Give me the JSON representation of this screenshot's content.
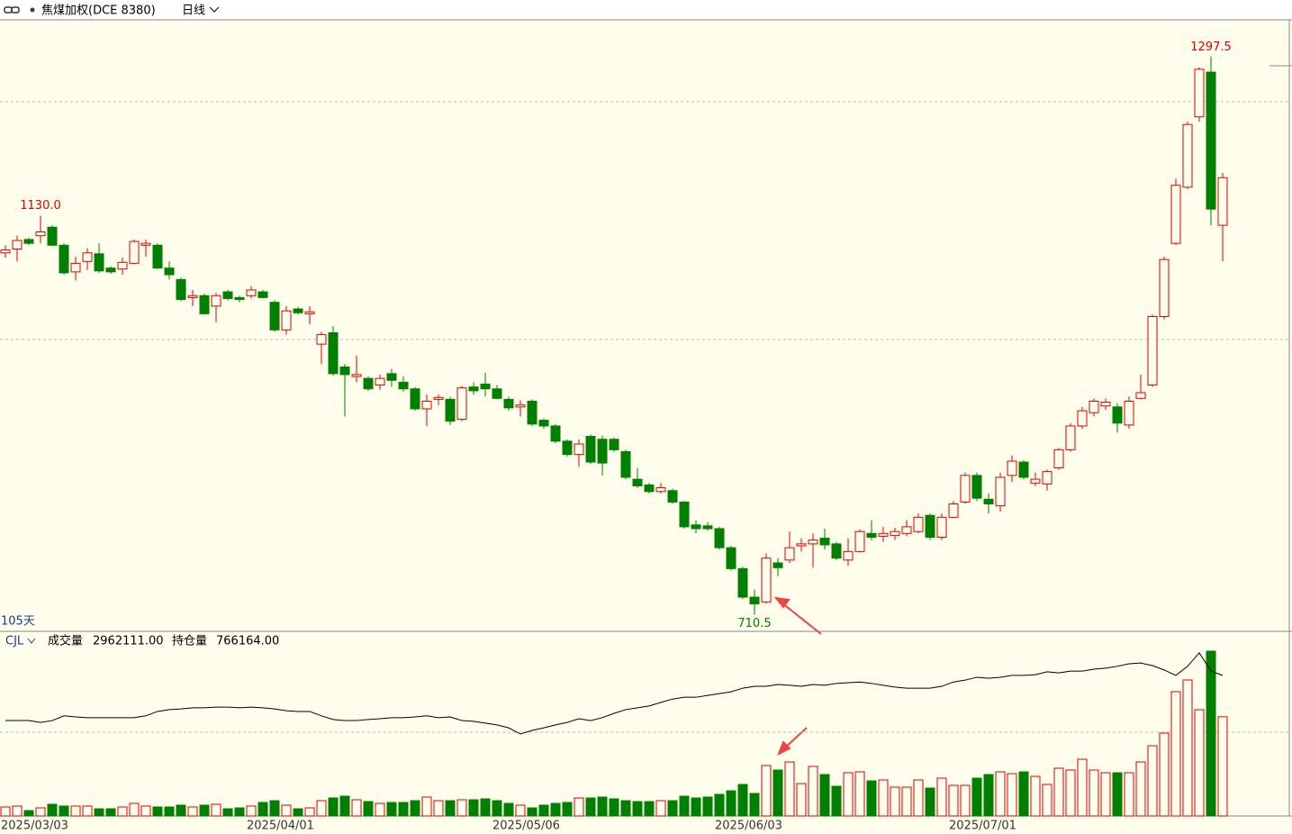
{
  "chart_data": {
    "type": "candlestick",
    "title": "焦煤加权(DCE 8380)",
    "period": "日线",
    "span_label": "105天",
    "indicator": "CJL",
    "volume_name": "成交量",
    "last_volume_label": "2962111.00",
    "oi_name": "持仓量",
    "last_oi_label": "766164.00",
    "peak_label": "1130.0",
    "high_label": "1297.5",
    "low_label": "710.5",
    "up_color": "#e00000",
    "down_color": "#008000",
    "oi_color": "#000000",
    "ylim": [
      694,
      1336
    ],
    "ygrid": [
      1000,
      1250
    ],
    "volume_ylim": [
      0,
      5000000
    ],
    "volume_grid": [
      2500000
    ],
    "y2lim": [
      380000,
      840000
    ],
    "categories": [
      "2025/03/03",
      null,
      null,
      null,
      null,
      null,
      null,
      null,
      null,
      null,
      null,
      null,
      null,
      null,
      null,
      null,
      null,
      null,
      null,
      null,
      null,
      "2025/04/01",
      null,
      null,
      null,
      null,
      null,
      null,
      null,
      null,
      null,
      null,
      null,
      null,
      null,
      null,
      null,
      null,
      null,
      null,
      null,
      null,
      "2025/05/06",
      null,
      null,
      null,
      null,
      null,
      null,
      null,
      null,
      null,
      null,
      null,
      null,
      null,
      null,
      null,
      null,
      null,
      null,
      "2025/06/03",
      null,
      null,
      null,
      null,
      null,
      null,
      null,
      null,
      null,
      null,
      null,
      null,
      null,
      null,
      null,
      null,
      null,
      null,
      null,
      "2025/07/01",
      null,
      null,
      null,
      null,
      null,
      null,
      null,
      null,
      null,
      null,
      null,
      null,
      null,
      null,
      null,
      null,
      null,
      null,
      null,
      null,
      null,
      null,
      null
    ],
    "open": [
      1091,
      1095,
      1105,
      1109,
      1118,
      1099,
      1071,
      1082,
      1090,
      1075,
      1074,
      1080,
      1099,
      1099,
      1075,
      1063,
      1044,
      1046,
      1035,
      1050,
      1044,
      1046,
      1050,
      1039,
      1010,
      1032,
      1027,
      995,
      1007,
      971,
      961,
      959,
      952,
      964,
      955,
      948,
      927,
      937,
      937,
      916,
      950,
      953,
      948,
      937,
      929,
      935,
      915,
      909,
      893,
      879,
      898,
      895,
      895,
      882,
      853,
      847,
      840,
      841,
      829,
      805,
      804,
      801,
      781,
      759,
      729,
      724,
      765,
      768,
      783,
      785,
      791,
      785,
      768,
      777,
      796,
      793,
      794,
      796,
      798,
      815,
      792,
      813,
      829,
      857,
      832,
      825,
      857,
      871,
      849,
      848,
      865,
      884,
      909,
      923,
      930,
      929,
      910,
      938,
      952,
      1024,
      1101,
      1160,
      1234,
      1281,
      1120
    ],
    "high": [
      1099,
      1109,
      1107,
      1130,
      1120,
      1101,
      1087,
      1096,
      1101,
      1077,
      1086,
      1105,
      1105,
      1101,
      1082,
      1065,
      1052,
      1048,
      1049,
      1052,
      1046,
      1056,
      1052,
      1041,
      1035,
      1034,
      1035,
      1008,
      1014,
      974,
      983,
      961,
      963,
      969,
      961,
      950,
      942,
      942,
      940,
      951,
      955,
      965,
      952,
      940,
      936,
      937,
      917,
      911,
      895,
      895,
      900,
      899,
      897,
      884,
      865,
      849,
      849,
      843,
      830,
      810,
      808,
      803,
      783,
      761,
      737,
      775,
      770,
      798,
      791,
      796,
      801,
      787,
      791,
      800,
      810,
      803,
      802,
      810,
      817,
      817,
      817,
      830,
      860,
      860,
      838,
      860,
      878,
      873,
      860,
      863,
      886,
      912,
      929,
      938,
      938,
      933,
      940,
      963,
      1026,
      1087,
      1169,
      1229,
      1286,
      1297.5,
      1175
    ],
    "low": [
      1086,
      1082,
      1099,
      1101,
      1098,
      1068,
      1062,
      1073,
      1070,
      1069,
      1068,
      1079,
      1087,
      1074,
      1063,
      1040,
      1035,
      1026,
      1018,
      1041,
      1039,
      1043,
      1043,
      1008,
      1005,
      1026,
      1016,
      974,
      962,
      919,
      955,
      946,
      947,
      950,
      945,
      925,
      909,
      931,
      910,
      914,
      942,
      940,
      937,
      925,
      919,
      909,
      906,
      891,
      877,
      866,
      869,
      857,
      882,
      853,
      844,
      838,
      838,
      827,
      801,
      796,
      799,
      779,
      757,
      727,
      710.5,
      722,
      751,
      765,
      777,
      760,
      779,
      768,
      762,
      776,
      789,
      787,
      789,
      793,
      796,
      789,
      789,
      812,
      827,
      830,
      817,
      819,
      850,
      853,
      846,
      841,
      863,
      882,
      906,
      919,
      926,
      902,
      906,
      937,
      950,
      1021,
      1099,
      1158,
      1229,
      1120,
      1082
    ],
    "close": [
      1094,
      1104,
      1101,
      1113,
      1099,
      1070,
      1080,
      1091,
      1072,
      1071,
      1081,
      1103,
      1101,
      1075,
      1068,
      1042,
      1046,
      1027,
      1046,
      1043,
      1042,
      1052,
      1044,
      1010,
      1030,
      1028,
      1029,
      1005,
      964,
      963,
      963,
      948,
      959,
      957,
      948,
      927,
      935,
      939,
      914,
      949,
      946,
      948,
      938,
      928,
      931,
      911,
      909,
      893,
      879,
      890,
      871,
      870,
      884,
      855,
      846,
      840,
      844,
      829,
      803,
      801,
      801,
      781,
      759,
      729,
      722,
      770,
      760,
      781,
      785,
      789,
      784,
      770,
      777,
      798,
      792,
      796,
      798,
      803,
      813,
      792,
      813,
      827,
      857,
      833,
      827,
      855,
      872,
      855,
      853,
      861,
      884,
      909,
      925,
      935,
      934,
      912,
      935,
      944,
      1024,
      1084,
      1162,
      1226,
      1284,
      1137,
      1170
    ],
    "volume": [
      269000,
      296000,
      161000,
      242000,
      349000,
      296000,
      296000,
      296000,
      215000,
      215000,
      269000,
      376000,
      296000,
      269000,
      269000,
      323000,
      269000,
      323000,
      349000,
      215000,
      242000,
      296000,
      403000,
      457000,
      323000,
      215000,
      242000,
      457000,
      538000,
      591000,
      484000,
      430000,
      376000,
      403000,
      403000,
      457000,
      565000,
      457000,
      457000,
      484000,
      484000,
      511000,
      457000,
      376000,
      323000,
      242000,
      323000,
      376000,
      403000,
      538000,
      538000,
      565000,
      511000,
      457000,
      430000,
      430000,
      457000,
      457000,
      591000,
      538000,
      565000,
      645000,
      753000,
      941000,
      672000,
      1505000,
      1371000,
      1613000,
      968000,
      1479000,
      1237000,
      887000,
      1290000,
      1317000,
      1048000,
      1075000,
      860000,
      860000,
      1075000,
      833000,
      1129000,
      914000,
      914000,
      1129000,
      1237000,
      1317000,
      1263000,
      1317000,
      1183000,
      941000,
      1425000,
      1371000,
      1694000,
      1371000,
      1290000,
      1290000,
      1290000,
      1613000,
      2097000,
      2473000,
      3710000,
      4059000,
      3172000,
      4919000,
      2962111
    ],
    "open_interest": [
      642000,
      642000,
      642000,
      637000,
      642000,
      655000,
      652000,
      650000,
      650000,
      650000,
      650000,
      650000,
      655000,
      667000,
      672000,
      674000,
      677000,
      677000,
      679000,
      679000,
      677000,
      679000,
      677000,
      674000,
      669000,
      667000,
      667000,
      655000,
      645000,
      642000,
      642000,
      645000,
      647000,
      650000,
      650000,
      652000,
      655000,
      650000,
      652000,
      642000,
      640000,
      635000,
      630000,
      622000,
      605000,
      615000,
      622000,
      630000,
      637000,
      647000,
      642000,
      650000,
      662000,
      672000,
      677000,
      682000,
      692000,
      701000,
      706000,
      706000,
      711000,
      716000,
      721000,
      731000,
      736000,
      736000,
      741000,
      739000,
      736000,
      741000,
      739000,
      744000,
      746000,
      748000,
      744000,
      739000,
      734000,
      731000,
      731000,
      731000,
      736000,
      748000,
      753000,
      761000,
      758000,
      761000,
      766000,
      766000,
      768000,
      776000,
      773000,
      778000,
      778000,
      783000,
      786000,
      791000,
      798000,
      800000,
      793000,
      781000,
      766000,
      791000,
      828000,
      778000,
      766164
    ]
  }
}
